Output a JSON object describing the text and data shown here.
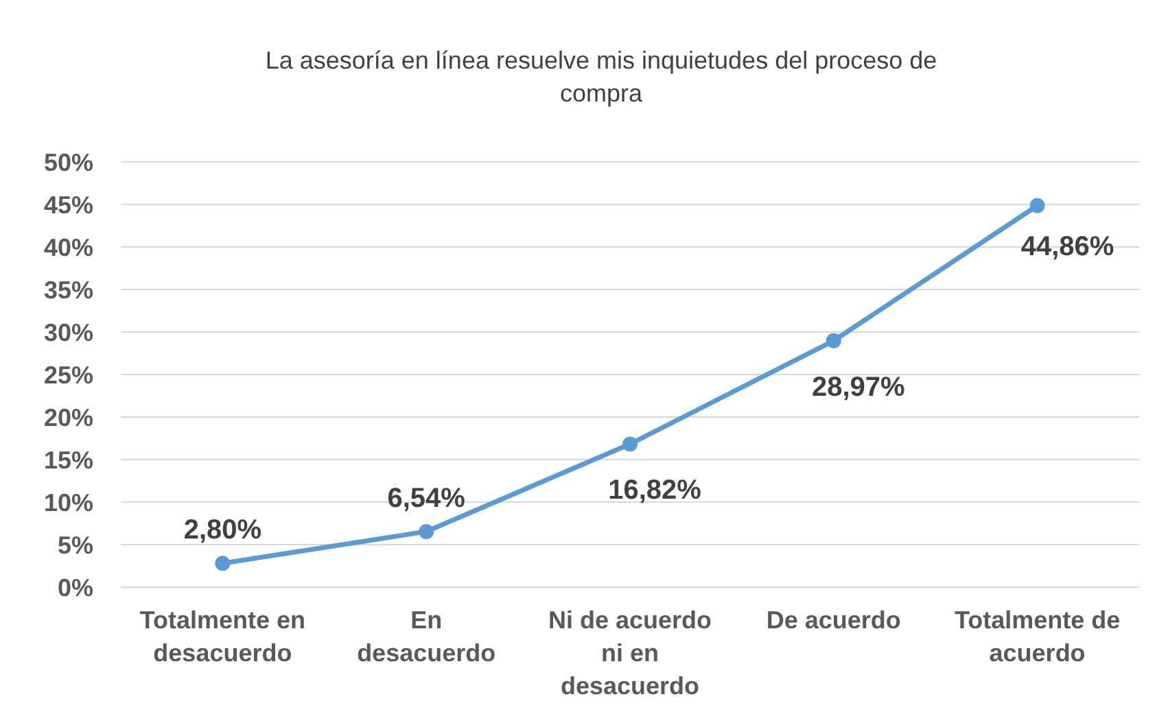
{
  "chart_data": {
    "type": "line",
    "title": "La asesoría en línea resuelve mis inquietudes del proceso de\ncompra",
    "categories": [
      "Totalmente en\ndesacuerdo",
      "En\ndesacuerdo",
      "Ni de acuerdo\nni en\ndesacuerdo",
      "De acuerdo",
      "Totalmente de\nacuerdo"
    ],
    "series": [
      {
        "color": "#5b9bd5",
        "values": [
          2.8,
          6.54,
          16.82,
          28.97,
          44.86
        ],
        "value_labels": [
          "2,80%",
          "6,54%",
          "16,82%",
          "28,97%",
          "44,86%"
        ]
      }
    ],
    "ylim": [
      0,
      50
    ],
    "yticks": [
      {
        "value": 0,
        "label": "0%"
      },
      {
        "value": 5,
        "label": "5%"
      },
      {
        "value": 10,
        "label": "10%"
      },
      {
        "value": 15,
        "label": "15%"
      },
      {
        "value": 20,
        "label": "20%"
      },
      {
        "value": 25,
        "label": "25%"
      },
      {
        "value": 30,
        "label": "30%"
      },
      {
        "value": 35,
        "label": "35%"
      },
      {
        "value": 40,
        "label": "40%"
      },
      {
        "value": 45,
        "label": "45%"
      },
      {
        "value": 50,
        "label": "50%"
      }
    ],
    "grid": "y",
    "marker": "circle",
    "line_style": "solid"
  }
}
